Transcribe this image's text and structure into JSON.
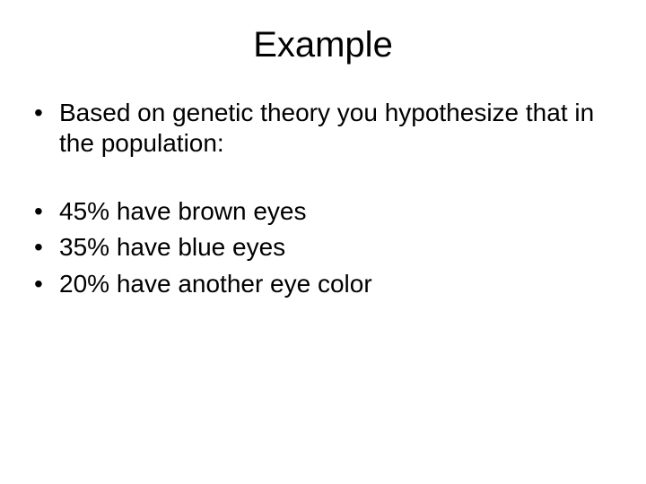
{
  "slide": {
    "title": "Example",
    "background_color": "#ffffff",
    "text_color": "#000000",
    "title_fontsize": 40,
    "body_fontsize": 28,
    "font_family": "Arial",
    "bullets_group1": [
      "Based on genetic theory you hypothesize that in the population:"
    ],
    "bullets_group2": [
      "45% have brown eyes",
      "35% have blue eyes",
      "20% have another eye color"
    ]
  }
}
